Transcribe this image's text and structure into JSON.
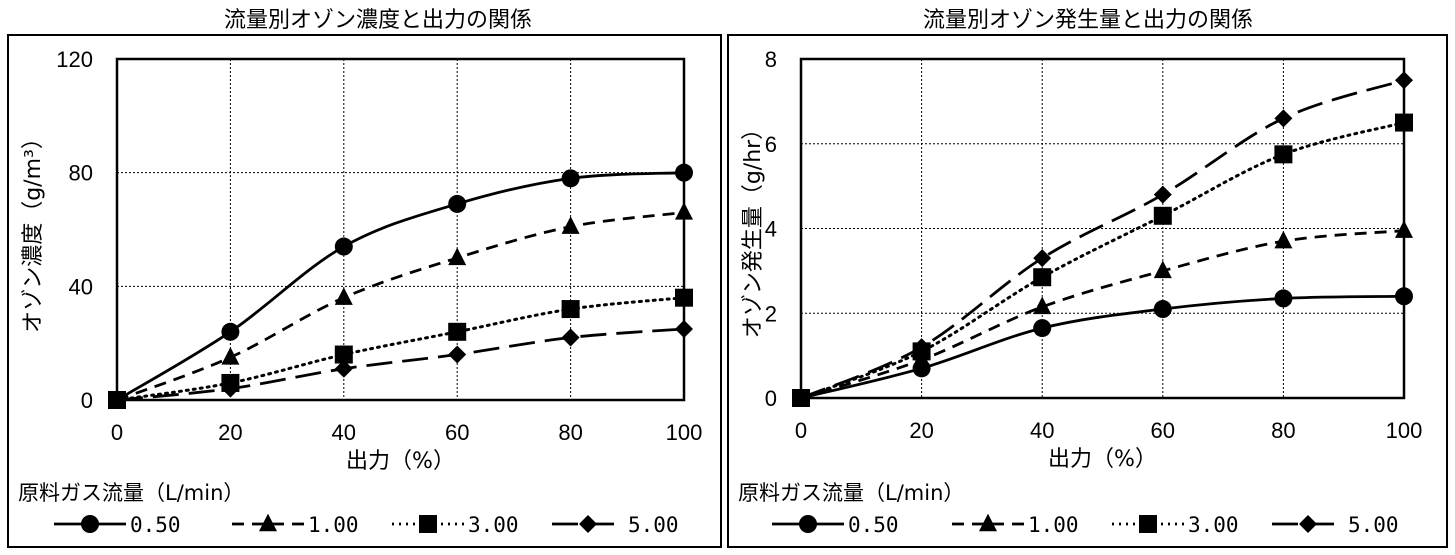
{
  "chart_data": [
    {
      "type": "line",
      "title": "流量別オゾン濃度と出力の関係",
      "xlabel": "出力（%）",
      "ylabel": "オゾン濃度（g/m³）",
      "x": [
        0,
        20,
        40,
        60,
        80,
        100
      ],
      "xlim": [
        0,
        100
      ],
      "ylim": [
        0,
        120
      ],
      "xticks": [
        "0",
        "20",
        "40",
        "60",
        "80",
        "100"
      ],
      "yticks": [
        "0",
        "40",
        "80",
        "120"
      ],
      "grid": true,
      "legend_title": "原料ガス流量（L/min）",
      "legend_position": "bottom",
      "series": [
        {
          "name": "0.50",
          "marker": "circle",
          "dash": "solid",
          "values": [
            0,
            24,
            54,
            69,
            78,
            80
          ]
        },
        {
          "name": "1.00",
          "marker": "triangle",
          "dash": "dashed",
          "values": [
            0,
            15,
            36,
            50,
            61,
            66
          ]
        },
        {
          "name": "3.00",
          "marker": "square",
          "dash": "dotted",
          "values": [
            0,
            6,
            16,
            24,
            32,
            36
          ]
        },
        {
          "name": "5.00",
          "marker": "diamond",
          "dash": "longdash",
          "values": [
            0,
            4,
            11,
            16,
            22,
            25
          ]
        }
      ]
    },
    {
      "type": "line",
      "title": "流量別オゾン発生量と出力の関係",
      "xlabel": "出力（%）",
      "ylabel": "オゾン発生量（g/hr）",
      "x": [
        0,
        20,
        40,
        60,
        80,
        100
      ],
      "xlim": [
        0,
        100
      ],
      "ylim": [
        0,
        8
      ],
      "xticks": [
        "0",
        "20",
        "40",
        "60",
        "80",
        "100"
      ],
      "yticks": [
        "0",
        "2",
        "4",
        "6",
        "8"
      ],
      "grid": true,
      "legend_title": "原料ガス流量（L/min）",
      "legend_position": "bottom",
      "series": [
        {
          "name": "0.50",
          "marker": "circle",
          "dash": "solid",
          "values": [
            0,
            0.7,
            1.65,
            2.1,
            2.35,
            2.4
          ]
        },
        {
          "name": "1.00",
          "marker": "triangle",
          "dash": "dashed",
          "values": [
            0,
            0.9,
            2.15,
            3.0,
            3.7,
            3.95
          ]
        },
        {
          "name": "3.00",
          "marker": "square",
          "dash": "dotted",
          "values": [
            0,
            1.1,
            2.85,
            4.3,
            5.75,
            6.5
          ]
        },
        {
          "name": "5.00",
          "marker": "diamond",
          "dash": "longdash",
          "values": [
            0,
            1.2,
            3.3,
            4.8,
            6.6,
            7.5
          ]
        }
      ]
    }
  ]
}
